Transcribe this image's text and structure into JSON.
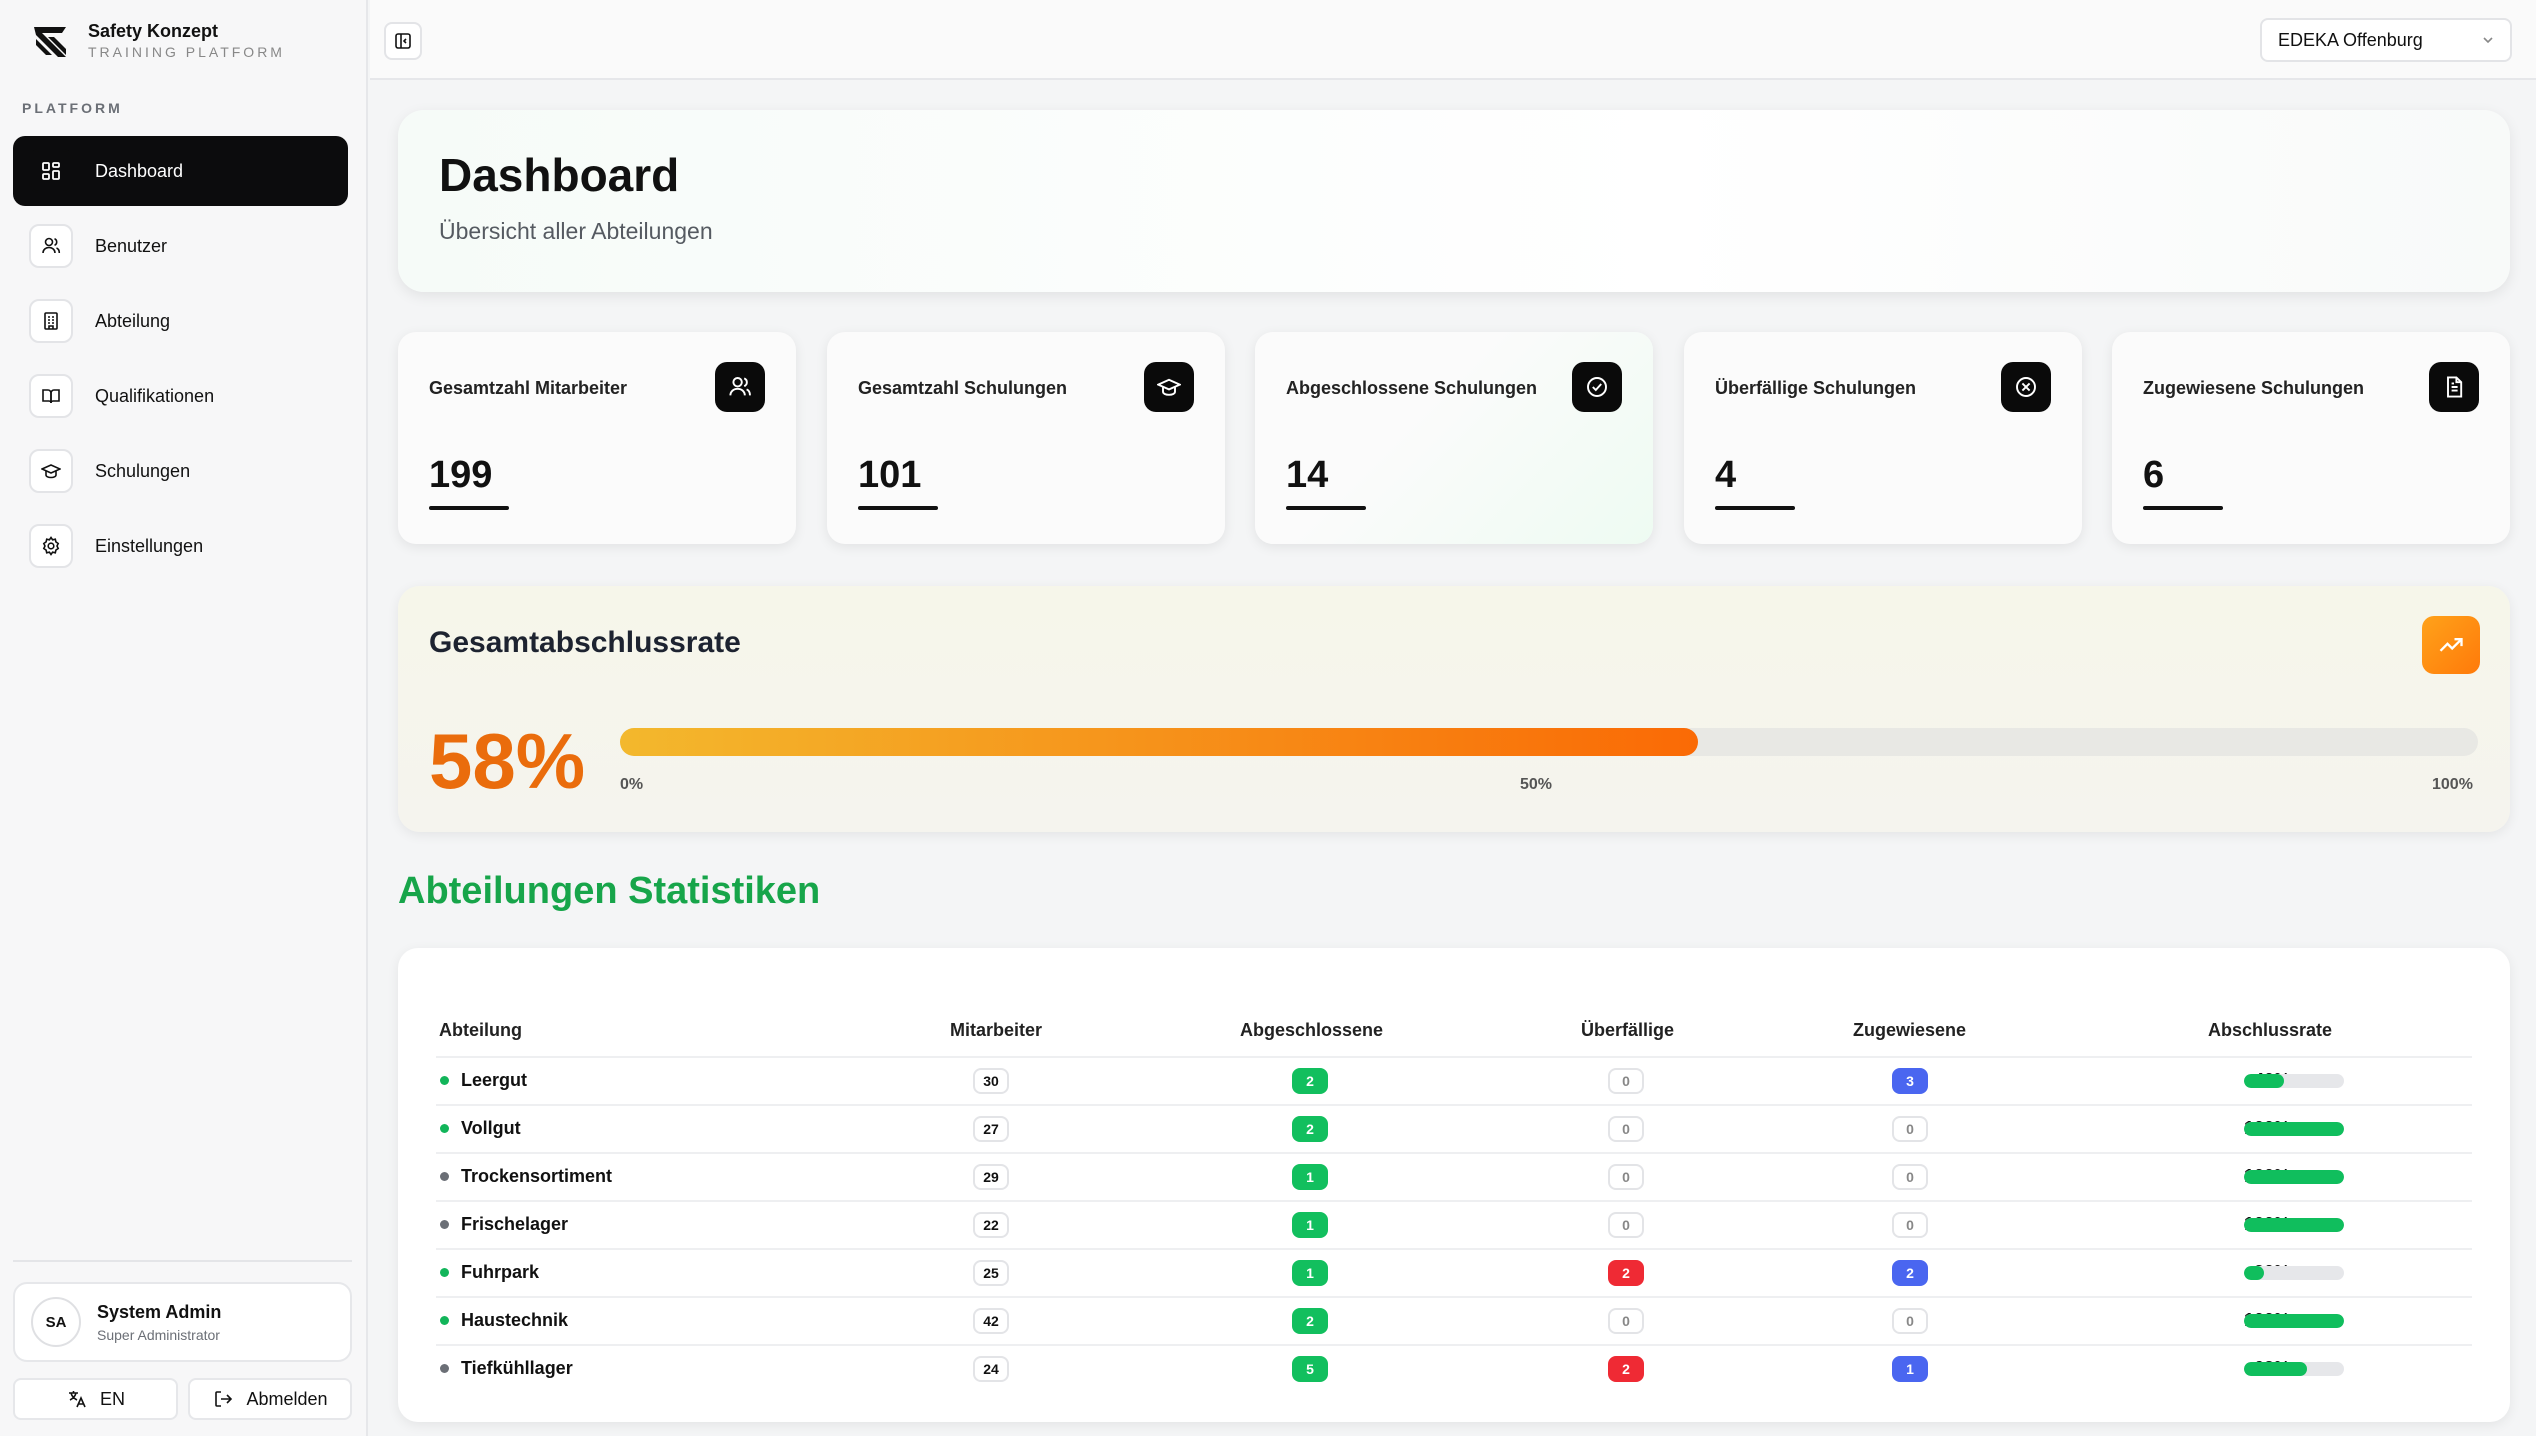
{
  "brand": {
    "title": "Safety Konzept",
    "subtitle": "TRAINING PLATFORM"
  },
  "sidebar": {
    "section_label": "PLATFORM",
    "items": [
      {
        "label": "Dashboard",
        "icon": "grid-icon",
        "active": true
      },
      {
        "label": "Benutzer",
        "icon": "users-icon"
      },
      {
        "label": "Abteilung",
        "icon": "building-icon"
      },
      {
        "label": "Qualifikationen",
        "icon": "book-icon"
      },
      {
        "label": "Schulungen",
        "icon": "graduation-cap-icon"
      },
      {
        "label": "Einstellungen",
        "icon": "gear-icon"
      }
    ],
    "user": {
      "initials": "SA",
      "name": "System Admin",
      "role": "Super Administrator"
    },
    "language_label": "EN",
    "logout_label": "Abmelden"
  },
  "topbar": {
    "location": "EDEKA Offenburg"
  },
  "hero": {
    "title": "Dashboard",
    "subtitle": "Übersicht aller Abteilungen"
  },
  "stats": [
    {
      "label": "Gesamtzahl Mitarbeiter",
      "value": "199",
      "icon": "users-icon"
    },
    {
      "label": "Gesamtzahl Schulungen",
      "value": "101",
      "icon": "graduation-cap-icon"
    },
    {
      "label": "Abgeschlossene Schulungen",
      "value": "14",
      "icon": "check-circle-icon"
    },
    {
      "label": "Überfällige Schulungen",
      "value": "4",
      "icon": "x-circle-icon"
    },
    {
      "label": "Zugewiesene Schulungen",
      "value": "6",
      "icon": "document-icon"
    }
  ],
  "completion": {
    "title": "Gesamtabschlussrate",
    "value_label": "58%",
    "percent": 58,
    "ticks": [
      "0%",
      "50%",
      "100%"
    ]
  },
  "departments": {
    "title": "Abteilungen Statistiken",
    "headers": [
      "Abteilung",
      "Mitarbeiter",
      "Abgeschlossene",
      "Überfällige",
      "Zugewiesene",
      "Abschlussrate"
    ],
    "rows": [
      {
        "name": "Leergut",
        "employees": "30",
        "completed": "2",
        "overdue": "0",
        "assigned": "3",
        "rate_label": "40%",
        "rate": 40,
        "dot": "#12b55a"
      },
      {
        "name": "Vollgut",
        "employees": "27",
        "completed": "2",
        "overdue": "0",
        "assigned": "0",
        "rate_label": "100%",
        "rate": 100,
        "dot": "#12b55a"
      },
      {
        "name": "Trockensortiment",
        "employees": "29",
        "completed": "1",
        "overdue": "0",
        "assigned": "0",
        "rate_label": "100%",
        "rate": 100,
        "dot": "#6b6f76"
      },
      {
        "name": "Frischelager",
        "employees": "22",
        "completed": "1",
        "overdue": "0",
        "assigned": "0",
        "rate_label": "100%",
        "rate": 100,
        "dot": "#6b6f76"
      },
      {
        "name": "Fuhrpark",
        "employees": "25",
        "completed": "1",
        "overdue": "2",
        "assigned": "2",
        "rate_label": "20%",
        "rate": 20,
        "dot": "#12b55a"
      },
      {
        "name": "Haustechnik",
        "employees": "42",
        "completed": "2",
        "overdue": "0",
        "assigned": "0",
        "rate_label": "100%",
        "rate": 100,
        "dot": "#12b55a"
      },
      {
        "name": "Tiefkühllager",
        "employees": "24",
        "completed": "5",
        "overdue": "2",
        "assigned": "1",
        "rate_label": "63%",
        "rate": 63,
        "dot": "#6b6f76"
      }
    ]
  }
}
